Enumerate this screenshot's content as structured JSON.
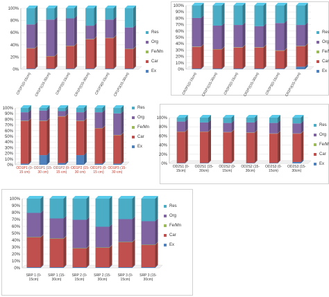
{
  "colors": {
    "Ex": "#4f81bd",
    "Car": "#c0504d",
    "Fe/Mn": "#9bbb59",
    "Org": "#8064a2",
    "Res": "#4bacc6"
  },
  "chart_data": [
    {
      "type": "bar",
      "stacked": true,
      "ytick_labels": [
        "0%",
        "20%",
        "40%",
        "60%",
        "80%",
        "100%"
      ],
      "categories": [
        "CR1P1(0-15cm)",
        "CR1P1(15-30cm)",
        "CR1P2(0-15cm)",
        "CR1P2(15-30cm)",
        "CR1P3(0-15cm)",
        "CR1P3(15-30cm)"
      ],
      "legend": [
        "Res",
        "Org",
        "Fe/Mn",
        "Car",
        "Ex"
      ],
      "ylim": [
        0,
        100
      ],
      "series": [
        {
          "name": "Ex",
          "values": [
            1,
            1,
            1,
            1,
            1,
            1
          ]
        },
        {
          "name": "Car",
          "values": [
            33,
            20,
            37,
            48,
            50,
            32
          ]
        },
        {
          "name": "Fe/Mn",
          "values": [
            0.5,
            0.5,
            0.5,
            0.5,
            0.5,
            0.5
          ]
        },
        {
          "name": "Org",
          "values": [
            39,
            60,
            45,
            22,
            30,
            35
          ]
        },
        {
          "name": "Res",
          "values": [
            26.5,
            18.5,
            16.5,
            28.5,
            18.5,
            31.5
          ]
        }
      ]
    },
    {
      "type": "bar",
      "stacked": true,
      "ytick_labels": [
        "0%",
        "10%",
        "20%",
        "30%",
        "40%",
        "50%",
        "60%",
        "70%",
        "80%",
        "90%",
        "100%"
      ],
      "categories": [
        "CR2P1(0-15cm)",
        "CR2P1(15-30cm)",
        "CR2P2(0-15cm)",
        "CR2P2(15-30cm)",
        "CR2P3(0-15cm)",
        "CR2P3(15-30cm)"
      ],
      "legend": [
        "Res",
        "Org",
        "Fe/Mn",
        "Car",
        "Ex"
      ],
      "ylim": [
        0,
        100
      ],
      "series": [
        {
          "name": "Ex",
          "values": [
            1,
            1,
            1,
            1,
            1,
            4
          ]
        },
        {
          "name": "Car",
          "values": [
            34,
            30,
            33,
            33,
            28,
            32
          ]
        },
        {
          "name": "Fe/Mn",
          "values": [
            0.5,
            0.5,
            0.5,
            0.5,
            0.5,
            0.5
          ]
        },
        {
          "name": "Org",
          "values": [
            45,
            37,
            35,
            33,
            43,
            33
          ]
        },
        {
          "name": "Res",
          "values": [
            19.5,
            31.5,
            30.5,
            32.5,
            27.5,
            30.5
          ]
        }
      ]
    },
    {
      "type": "bar",
      "stacked": true,
      "ytick_labels": [
        "0%",
        "10%",
        "20%",
        "30%",
        "40%",
        "50%",
        "60%",
        "70%",
        "80%",
        "90%",
        "100%"
      ],
      "categories": [
        "OD1P1 (0-15 cm)",
        "OD1P1 (15-30 cm)",
        "OD1P2 (0-15 cm)",
        "OD1P2 (15-30 cm)",
        "OD1P3 (0-15 cm)",
        "OD1P3 (15-30 cm)"
      ],
      "legend": [
        "Res",
        "Org",
        "Fe/Mn",
        "Car",
        "Ex"
      ],
      "ylim": [
        0,
        100
      ],
      "series": [
        {
          "name": "Ex",
          "values": [
            2,
            17,
            3,
            17,
            2,
            2
          ]
        },
        {
          "name": "Car",
          "values": [
            75,
            60,
            82,
            60,
            62,
            50
          ]
        },
        {
          "name": "Fe/Mn",
          "values": [
            0.5,
            0.5,
            0.5,
            0.5,
            0.5,
            0.5
          ]
        },
        {
          "name": "Org",
          "values": [
            15,
            18,
            9,
            15,
            28,
            38
          ]
        },
        {
          "name": "Res",
          "values": [
            7.5,
            4.5,
            5.5,
            7.5,
            7.5,
            9.5
          ]
        }
      ]
    },
    {
      "type": "bar",
      "stacked": true,
      "ytick_labels": [
        "0%",
        "20%",
        "40%",
        "60%",
        "80%",
        "100%"
      ],
      "categories": [
        "OD2S1(0-15cm)",
        "OD2S1(15-30cm)",
        "OD2S2(0-15cm)",
        "OD2S2(15-30cm)",
        "OD2S3(0-15cm)",
        "OD2S3(15-30cm)"
      ],
      "legend": [
        "Res",
        "Org",
        "Fe/Mn",
        "Car",
        "Ex"
      ],
      "ylim": [
        0,
        100
      ],
      "series": [
        {
          "name": "Ex",
          "values": [
            1,
            1,
            1,
            1,
            1,
            3
          ]
        },
        {
          "name": "Car",
          "values": [
            68,
            68,
            67,
            66,
            64,
            62
          ]
        },
        {
          "name": "Fe/Mn",
          "values": [
            0.5,
            0.5,
            0.5,
            0.5,
            0.5,
            0.5
          ]
        },
        {
          "name": "Org",
          "values": [
            22,
            20,
            20,
            22,
            23,
            22
          ]
        },
        {
          "name": "Res",
          "values": [
            8.5,
            10.5,
            11.5,
            10.5,
            11.5,
            12.5
          ]
        }
      ]
    },
    {
      "type": "bar",
      "stacked": true,
      "ytick_labels": [
        "0%",
        "10%",
        "20%",
        "30%",
        "40%",
        "50%",
        "60%",
        "70%",
        "80%",
        "90%",
        "100%"
      ],
      "categories": [
        "SRP 1 (0-15cm)",
        "SRP 1 (15-30cm)",
        "SRP 2 (0-15cm)",
        "SRP 2 (15-30cm)",
        "SRP 3 (0-15cm)",
        "SRP 3 (15-30cm)"
      ],
      "legend": [
        "Res",
        "Org",
        "Fe/Mn",
        "Car",
        "Ex"
      ],
      "ylim": [
        0,
        100
      ],
      "series": [
        {
          "name": "Ex",
          "values": [
            1,
            1,
            1,
            1,
            1,
            1
          ]
        },
        {
          "name": "Car",
          "values": [
            43,
            41,
            27,
            28,
            36,
            32
          ]
        },
        {
          "name": "Fe/Mn",
          "values": [
            0.5,
            0.5,
            0.5,
            0.5,
            0.5,
            0.5
          ]
        },
        {
          "name": "Org",
          "values": [
            35,
            29,
            41,
            30,
            33,
            34
          ]
        },
        {
          "name": "Res",
          "values": [
            20.5,
            28.5,
            30.5,
            40.5,
            29.5,
            32.5
          ]
        }
      ]
    }
  ]
}
